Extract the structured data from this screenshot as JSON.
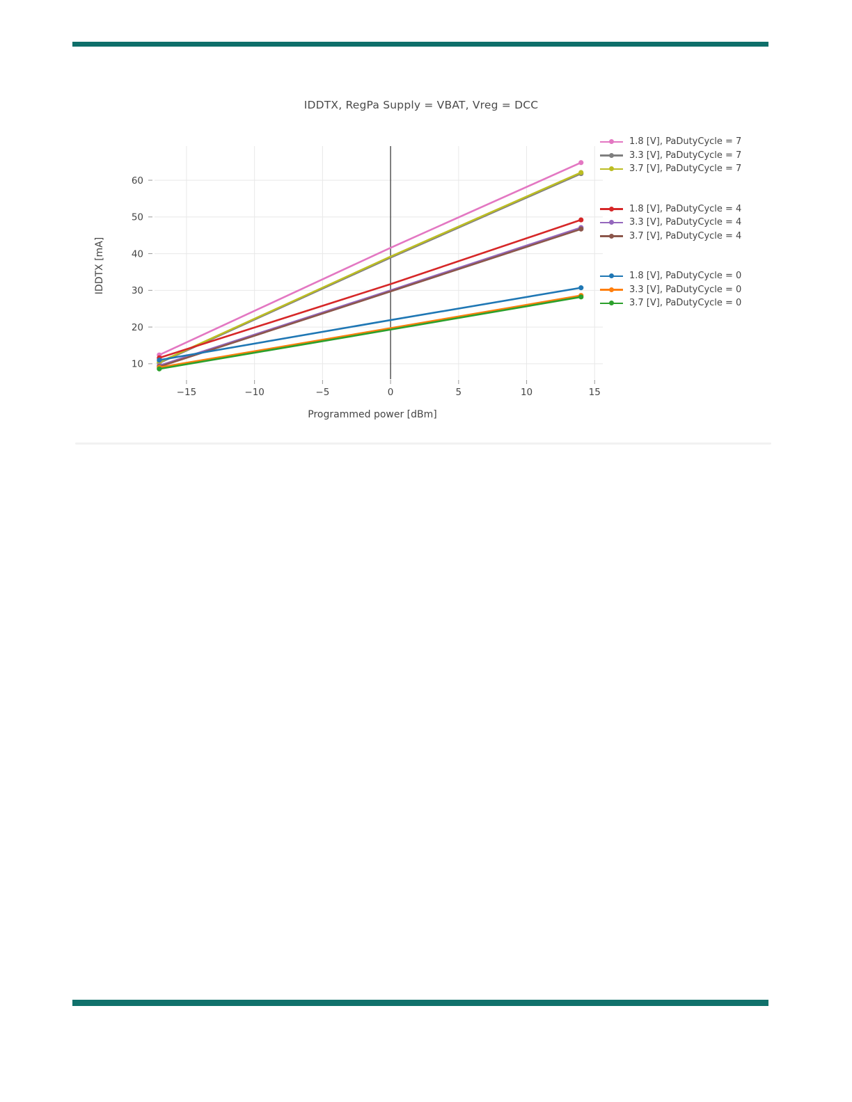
{
  "page": {
    "top_rule_color": "#0e6f6a",
    "bottom_rule_color": "#10716b"
  },
  "chart_data": {
    "type": "line",
    "title": "IDDTX, RegPa Supply = VBAT, Vreg = DCC",
    "xlabel": "Programmed power [dBm]",
    "ylabel": "IDDTX [mA]",
    "xlim": [
      -17.35,
      15.6
    ],
    "ylim": [
      5.8,
      69.3
    ],
    "x_ticks": [
      -15,
      -10,
      -5,
      0,
      5,
      10,
      15
    ],
    "y_ticks": [
      10,
      20,
      30,
      40,
      50,
      60
    ],
    "grid": true,
    "zeroline_x": 0,
    "legend_position": "right-outside",
    "x": [
      -17,
      0,
      14
    ],
    "legend_groups": [
      {
        "series": [
          {
            "label": "1.8 [V], PaDutyCycle = 7",
            "color": "#e377c2",
            "values": [
              12.4,
              41.6,
              64.8
            ]
          },
          {
            "label": "3.3 [V], PaDutyCycle = 7",
            "color": "#7f7f7f",
            "values": [
              10.2,
              38.9,
              61.8
            ]
          },
          {
            "label": "3.7 [V], PaDutyCycle = 7",
            "color": "#bcbd22",
            "values": [
              10.4,
              39.2,
              62.1
            ]
          }
        ]
      },
      {
        "series": [
          {
            "label": "1.8 [V], PaDutyCycle = 4",
            "color": "#d62728",
            "values": [
              11.6,
              31.7,
              49.2
            ]
          },
          {
            "label": "3.3 [V], PaDutyCycle = 4",
            "color": "#9467bd",
            "values": [
              9.5,
              30.0,
              47.1
            ]
          },
          {
            "label": "3.7 [V], PaDutyCycle = 4",
            "color": "#8c564b",
            "values": [
              9.2,
              29.7,
              46.7
            ]
          }
        ]
      },
      {
        "series": [
          {
            "label": "1.8 [V], PaDutyCycle = 0",
            "color": "#1f77b4",
            "values": [
              11.0,
              21.9,
              30.7
            ]
          },
          {
            "label": "3.3 [V], PaDutyCycle = 0",
            "color": "#ff7f0e",
            "values": [
              9.0,
              19.7,
              28.6
            ]
          },
          {
            "label": "3.7 [V], PaDutyCycle = 0",
            "color": "#2ca02c",
            "values": [
              8.6,
              19.3,
              28.2
            ]
          }
        ]
      }
    ],
    "grid_color": "#e8e8e8",
    "zeroline_color": "#3c3c3c",
    "tick_mark_color": "#999999",
    "text_color": "#444444"
  }
}
